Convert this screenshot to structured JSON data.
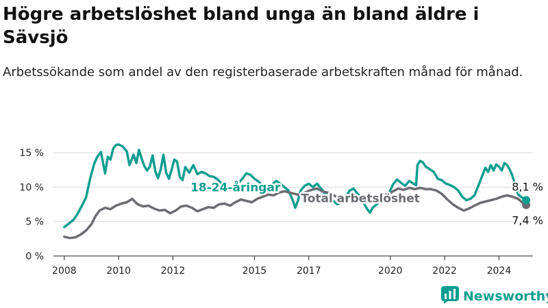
{
  "chart_data": {
    "type": "line",
    "title": "Högre arbetslöshet bland unga än bland äldre i Sävsjö",
    "subtitle": "Arbetssökande som andel av den registerbaserade arbetskraften månad för månad.",
    "ylim": [
      0,
      16
    ],
    "yticks": [
      0,
      5,
      10,
      15
    ],
    "ytick_labels": [
      "0 %",
      "5 %",
      "10 %",
      "15 %"
    ],
    "xlim": [
      2007.6,
      2025.25
    ],
    "xticks": [
      2008,
      2010,
      2012,
      2015,
      2017,
      2020,
      2022,
      2024
    ],
    "xtick_labels": [
      "2008",
      "2010",
      "2012",
      "2015",
      "2017",
      "2020",
      "2022",
      "2024"
    ],
    "grid": true,
    "series": [
      {
        "name": "18-24-åringar",
        "color": "#0e9e90",
        "end_label": "8,1 %",
        "points": [
          [
            2008.0,
            4.2
          ],
          [
            2008.2,
            4.8
          ],
          [
            2008.35,
            5.3
          ],
          [
            2008.5,
            6.2
          ],
          [
            2008.65,
            7.3
          ],
          [
            2008.8,
            8.5
          ],
          [
            2008.95,
            11.2
          ],
          [
            2009.1,
            13.4
          ],
          [
            2009.2,
            14.3
          ],
          [
            2009.35,
            15.1
          ],
          [
            2009.5,
            12.0
          ],
          [
            2009.6,
            14.4
          ],
          [
            2009.7,
            14.0
          ],
          [
            2009.8,
            15.6
          ],
          [
            2009.9,
            16.1
          ],
          [
            2010.0,
            16.2
          ],
          [
            2010.15,
            15.9
          ],
          [
            2010.3,
            15.2
          ],
          [
            2010.4,
            13.2
          ],
          [
            2010.55,
            14.7
          ],
          [
            2010.65,
            13.5
          ],
          [
            2010.75,
            15.4
          ],
          [
            2010.85,
            14.1
          ],
          [
            2010.95,
            13.0
          ],
          [
            2011.05,
            12.4
          ],
          [
            2011.15,
            13.0
          ],
          [
            2011.25,
            14.6
          ],
          [
            2011.35,
            12.3
          ],
          [
            2011.45,
            11.3
          ],
          [
            2011.55,
            12.6
          ],
          [
            2011.65,
            14.7
          ],
          [
            2011.75,
            12.1
          ],
          [
            2011.85,
            11.2
          ],
          [
            2011.95,
            12.5
          ],
          [
            2012.05,
            14.0
          ],
          [
            2012.15,
            13.7
          ],
          [
            2012.25,
            11.5
          ],
          [
            2012.35,
            11.0
          ],
          [
            2012.45,
            12.9
          ],
          [
            2012.6,
            12.1
          ],
          [
            2012.75,
            13.2
          ],
          [
            2012.9,
            11.9
          ],
          [
            2013.05,
            12.2
          ],
          [
            2013.2,
            12.0
          ],
          [
            2013.35,
            11.6
          ],
          [
            2013.5,
            11.5
          ],
          [
            2013.65,
            11.1
          ],
          [
            2013.8,
            10.5
          ],
          [
            2014.0,
            10.0
          ],
          [
            2014.2,
            9.8
          ],
          [
            2014.4,
            10.5
          ],
          [
            2014.55,
            11.2
          ],
          [
            2014.7,
            12.0
          ],
          [
            2014.85,
            11.8
          ],
          [
            2015.0,
            11.2
          ],
          [
            2015.15,
            10.8
          ],
          [
            2015.3,
            10.3
          ],
          [
            2015.5,
            10.0
          ],
          [
            2015.65,
            10.4
          ],
          [
            2015.8,
            10.9
          ],
          [
            2015.95,
            10.5
          ],
          [
            2016.1,
            10.0
          ],
          [
            2016.25,
            9.5
          ],
          [
            2016.4,
            8.2
          ],
          [
            2016.5,
            7.0
          ],
          [
            2016.6,
            8.0
          ],
          [
            2016.7,
            9.5
          ],
          [
            2016.85,
            10.2
          ],
          [
            2017.0,
            10.5
          ],
          [
            2017.15,
            10.0
          ],
          [
            2017.3,
            10.5
          ],
          [
            2017.45,
            9.8
          ],
          [
            2017.6,
            9.0
          ],
          [
            2017.75,
            8.5
          ],
          [
            2017.9,
            8.0
          ],
          [
            2018.05,
            7.5
          ],
          [
            2018.2,
            7.8
          ],
          [
            2018.35,
            8.5
          ],
          [
            2018.5,
            9.5
          ],
          [
            2018.65,
            9.8
          ],
          [
            2018.8,
            9.0
          ],
          [
            2018.95,
            8.5
          ],
          [
            2019.05,
            7.5
          ],
          [
            2019.15,
            6.8
          ],
          [
            2019.25,
            6.3
          ],
          [
            2019.35,
            7.0
          ],
          [
            2019.5,
            7.5
          ],
          [
            2019.65,
            8.2
          ],
          [
            2019.8,
            8.7
          ],
          [
            2019.95,
            9.1
          ],
          [
            2020.1,
            10.4
          ],
          [
            2020.25,
            11.1
          ],
          [
            2020.4,
            10.6
          ],
          [
            2020.55,
            10.2
          ],
          [
            2020.7,
            10.9
          ],
          [
            2020.85,
            10.5
          ],
          [
            2020.95,
            10.3
          ],
          [
            2021.0,
            13.2
          ],
          [
            2021.1,
            13.8
          ],
          [
            2021.2,
            13.6
          ],
          [
            2021.3,
            13.0
          ],
          [
            2021.45,
            12.6
          ],
          [
            2021.6,
            12.2
          ],
          [
            2021.75,
            11.2
          ],
          [
            2021.9,
            11.0
          ],
          [
            2022.05,
            10.5
          ],
          [
            2022.2,
            10.3
          ],
          [
            2022.35,
            10.0
          ],
          [
            2022.5,
            9.5
          ],
          [
            2022.65,
            8.6
          ],
          [
            2022.8,
            8.1
          ],
          [
            2022.95,
            8.3
          ],
          [
            2023.1,
            8.8
          ],
          [
            2023.25,
            10.3
          ],
          [
            2023.4,
            11.8
          ],
          [
            2023.5,
            12.8
          ],
          [
            2023.6,
            12.2
          ],
          [
            2023.7,
            13.2
          ],
          [
            2023.8,
            12.4
          ],
          [
            2023.9,
            13.3
          ],
          [
            2024.0,
            13.0
          ],
          [
            2024.1,
            12.4
          ],
          [
            2024.2,
            13.5
          ],
          [
            2024.3,
            13.2
          ],
          [
            2024.4,
            12.5
          ],
          [
            2024.5,
            11.6
          ],
          [
            2024.6,
            10.2
          ],
          [
            2024.7,
            9.0
          ],
          [
            2024.8,
            8.6
          ],
          [
            2024.9,
            8.4
          ],
          [
            2025.0,
            8.1
          ]
        ]
      },
      {
        "name": "Total arbetslöshet",
        "color": "#6d6c72",
        "end_label": "7,4 %",
        "points": [
          [
            2008.0,
            2.8
          ],
          [
            2008.2,
            2.6
          ],
          [
            2008.4,
            2.7
          ],
          [
            2008.6,
            3.1
          ],
          [
            2008.8,
            3.7
          ],
          [
            2009.0,
            4.6
          ],
          [
            2009.15,
            5.8
          ],
          [
            2009.3,
            6.6
          ],
          [
            2009.5,
            7.0
          ],
          [
            2009.7,
            6.8
          ],
          [
            2009.9,
            7.3
          ],
          [
            2010.1,
            7.6
          ],
          [
            2010.3,
            7.8
          ],
          [
            2010.5,
            8.3
          ],
          [
            2010.7,
            7.5
          ],
          [
            2010.9,
            7.2
          ],
          [
            2011.1,
            7.3
          ],
          [
            2011.3,
            6.9
          ],
          [
            2011.5,
            6.6
          ],
          [
            2011.7,
            6.7
          ],
          [
            2011.9,
            6.2
          ],
          [
            2012.1,
            6.6
          ],
          [
            2012.3,
            7.2
          ],
          [
            2012.5,
            7.3
          ],
          [
            2012.7,
            7.0
          ],
          [
            2012.9,
            6.5
          ],
          [
            2013.1,
            6.8
          ],
          [
            2013.3,
            7.1
          ],
          [
            2013.5,
            7.0
          ],
          [
            2013.7,
            7.5
          ],
          [
            2013.9,
            7.6
          ],
          [
            2014.1,
            7.3
          ],
          [
            2014.3,
            7.8
          ],
          [
            2014.5,
            8.2
          ],
          [
            2014.7,
            8.0
          ],
          [
            2014.9,
            7.8
          ],
          [
            2015.1,
            8.3
          ],
          [
            2015.3,
            8.6
          ],
          [
            2015.5,
            8.9
          ],
          [
            2015.7,
            8.8
          ],
          [
            2015.9,
            9.2
          ],
          [
            2016.1,
            9.4
          ],
          [
            2016.3,
            9.2
          ],
          [
            2016.5,
            9.0
          ],
          [
            2016.7,
            8.8
          ],
          [
            2016.9,
            9.3
          ],
          [
            2017.1,
            9.6
          ],
          [
            2017.3,
            9.8
          ],
          [
            2017.5,
            9.4
          ],
          [
            2017.7,
            9.2
          ],
          [
            2017.9,
            8.8
          ],
          [
            2018.1,
            8.5
          ],
          [
            2018.3,
            8.7
          ],
          [
            2018.5,
            8.9
          ],
          [
            2018.7,
            8.6
          ],
          [
            2018.9,
            8.3
          ],
          [
            2019.1,
            8.2
          ],
          [
            2019.3,
            8.4
          ],
          [
            2019.5,
            8.5
          ],
          [
            2019.7,
            8.6
          ],
          [
            2019.9,
            8.8
          ],
          [
            2020.1,
            9.4
          ],
          [
            2020.3,
            9.8
          ],
          [
            2020.5,
            9.6
          ],
          [
            2020.7,
            9.9
          ],
          [
            2020.9,
            9.7
          ],
          [
            2021.1,
            9.9
          ],
          [
            2021.3,
            9.7
          ],
          [
            2021.5,
            9.7
          ],
          [
            2021.7,
            9.5
          ],
          [
            2021.9,
            9.0
          ],
          [
            2022.1,
            8.2
          ],
          [
            2022.3,
            7.5
          ],
          [
            2022.5,
            7.0
          ],
          [
            2022.7,
            6.6
          ],
          [
            2022.9,
            6.9
          ],
          [
            2023.1,
            7.3
          ],
          [
            2023.3,
            7.7
          ],
          [
            2023.5,
            7.9
          ],
          [
            2023.7,
            8.1
          ],
          [
            2023.9,
            8.3
          ],
          [
            2024.1,
            8.6
          ],
          [
            2024.3,
            8.8
          ],
          [
            2024.5,
            8.6
          ],
          [
            2024.7,
            8.3
          ],
          [
            2024.85,
            7.8
          ],
          [
            2025.0,
            7.4
          ]
        ]
      }
    ]
  },
  "brand": {
    "name": "Newsworthy",
    "logo_icon": "newsworthy-logo-icon"
  }
}
